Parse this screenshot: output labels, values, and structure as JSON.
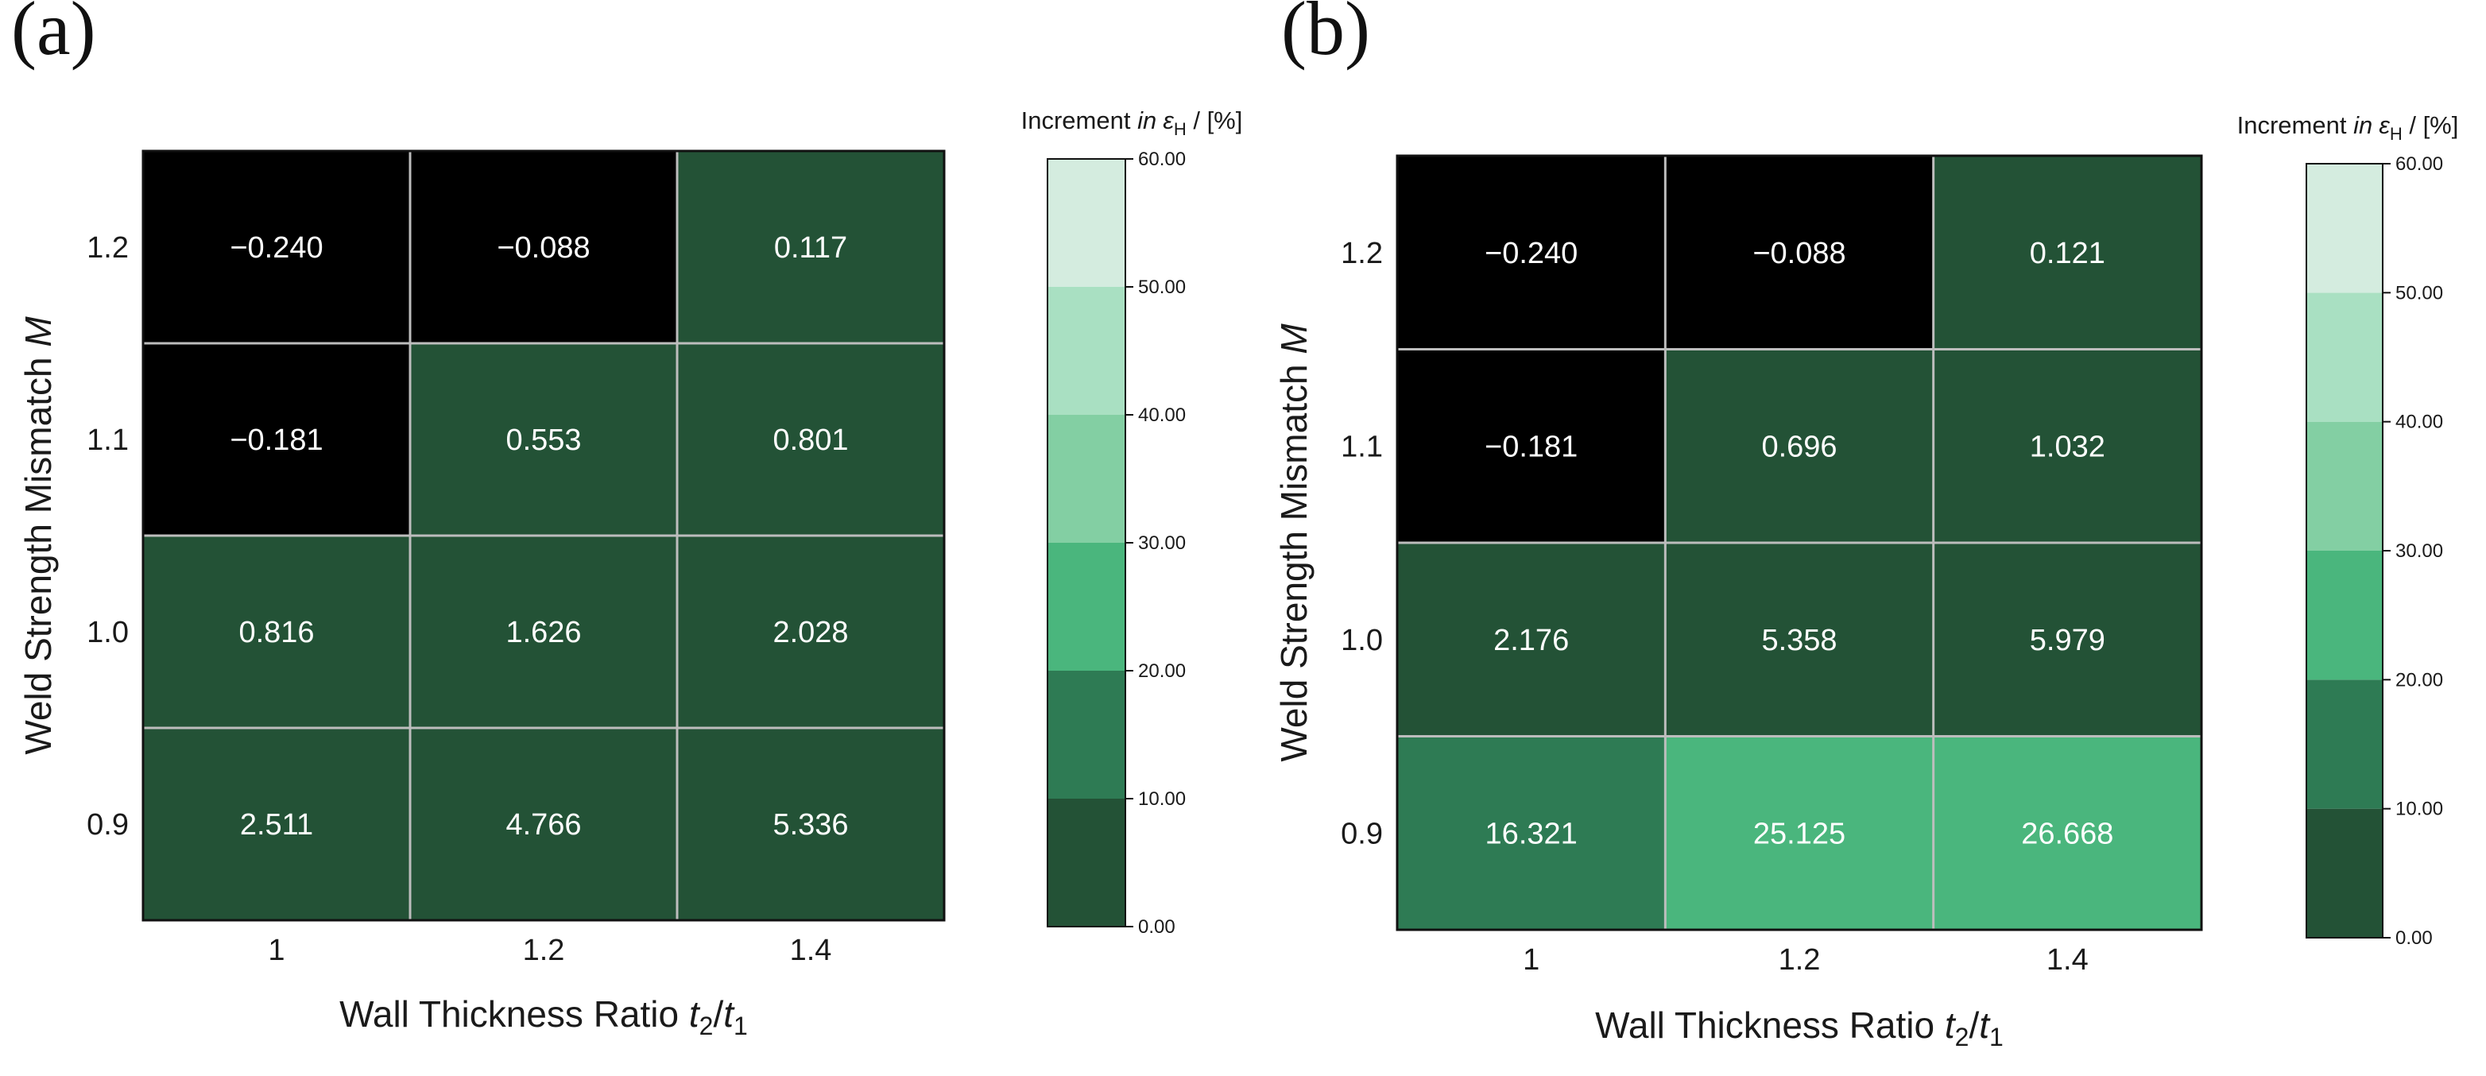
{
  "chart_data": [
    {
      "type": "heatmap",
      "panel_label": "(a)",
      "x_categories": [
        "1",
        "1.2",
        "1.4"
      ],
      "y_categories": [
        "1.2",
        "1.1",
        "1.0",
        "0.9"
      ],
      "values": [
        [
          -0.24,
          -0.088,
          0.117
        ],
        [
          -0.181,
          0.553,
          0.801
        ],
        [
          0.816,
          1.626,
          2.028
        ],
        [
          2.511,
          4.766,
          5.336
        ]
      ],
      "value_labels": [
        [
          "−0.240",
          "−0.088",
          "0.117"
        ],
        [
          "−0.181",
          "0.553",
          "0.801"
        ],
        [
          "0.816",
          "1.626",
          "2.028"
        ],
        [
          "2.511",
          "4.766",
          "5.336"
        ]
      ],
      "xlabel": {
        "main": "Wall Thickness Ratio ",
        "var1": "t",
        "sub1": "2",
        "slash": "/",
        "var2": "t",
        "sub2": "1"
      },
      "ylabel": {
        "main": "Weld Strength Mismatch ",
        "var": "M"
      },
      "colorbar": {
        "title": {
          "main": "Increment ",
          "in": "in",
          "eps": "ε",
          "sub": "H",
          "unit": " / [%]"
        },
        "ticks": [
          "0.00",
          "10.00",
          "20.00",
          "30.00",
          "40.00",
          "50.00",
          "60.00"
        ],
        "range": [
          0,
          60
        ]
      }
    },
    {
      "type": "heatmap",
      "panel_label": "(b)",
      "x_categories": [
        "1",
        "1.2",
        "1.4"
      ],
      "y_categories": [
        "1.2",
        "1.1",
        "1.0",
        "0.9"
      ],
      "values": [
        [
          -0.24,
          -0.088,
          0.121
        ],
        [
          -0.181,
          0.696,
          1.032
        ],
        [
          2.176,
          5.358,
          5.979
        ],
        [
          16.321,
          25.125,
          26.668
        ]
      ],
      "value_labels": [
        [
          "−0.240",
          "−0.088",
          "0.121"
        ],
        [
          "−0.181",
          "0.696",
          "1.032"
        ],
        [
          "2.176",
          "5.358",
          "5.979"
        ],
        [
          "16.321",
          "25.125",
          "26.668"
        ]
      ],
      "xlabel": {
        "main": "Wall Thickness Ratio ",
        "var1": "t",
        "sub1": "2",
        "slash": "/",
        "var2": "t",
        "sub2": "1"
      },
      "ylabel": {
        "main": "Weld Strength Mismatch ",
        "var": "M"
      },
      "colorbar": {
        "title": {
          "main": "Increment ",
          "in": "in",
          "eps": "ε",
          "sub": "H",
          "unit": " / [%]"
        },
        "ticks": [
          "0.00",
          "10.00",
          "20.00",
          "30.00",
          "40.00",
          "50.00",
          "60.00"
        ],
        "range": [
          0,
          60
        ]
      }
    }
  ],
  "colors": {
    "negative": "#000000",
    "bands": [
      "#235236",
      "#2e7b54",
      "#4ab67d",
      "#83cfa3",
      "#a9e0c2",
      "#d4ecdf"
    ]
  }
}
